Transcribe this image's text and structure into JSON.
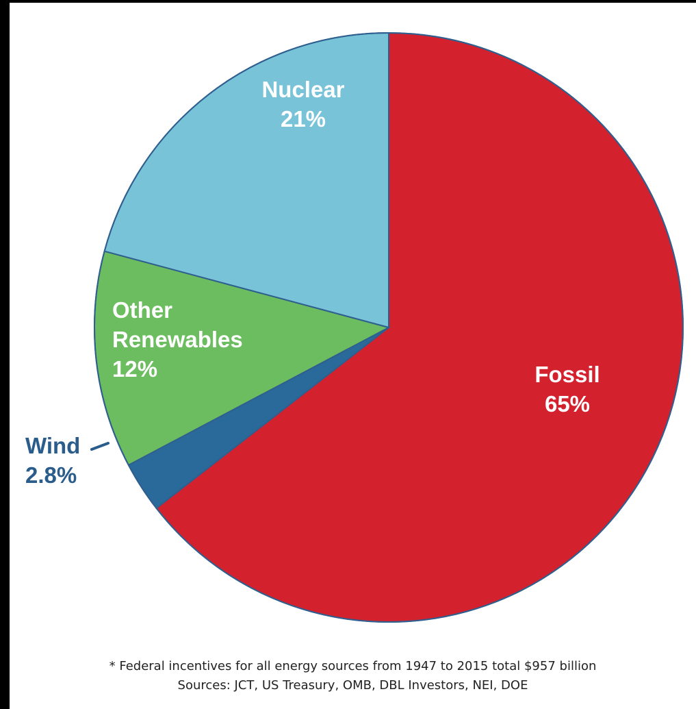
{
  "chart_data": {
    "type": "pie",
    "slices": [
      {
        "key": "fossil",
        "label_lines": [
          "Fossil"
        ],
        "value_text": "65%",
        "value": 65,
        "color": "#d3212e"
      },
      {
        "key": "wind",
        "label_lines": [
          "Wind"
        ],
        "value_text": "2.8%",
        "value": 2.8,
        "color": "#2a6a9a"
      },
      {
        "key": "other",
        "label_lines": [
          "Other",
          "Renewables"
        ],
        "value_text": "12%",
        "value": 12,
        "color": "#6cbd5f"
      },
      {
        "key": "nuclear",
        "label_lines": [
          "Nuclear"
        ],
        "value_text": "21%",
        "value": 21,
        "color": "#78c3d8"
      }
    ],
    "edge_color": "#2f5f8e",
    "label_colors": {
      "inside": "#ffffff",
      "outside": "#2a5d8c"
    }
  },
  "footnote": {
    "line1": "* Federal incentives for all energy sources from 1947 to 2015 total $957 billion",
    "line2": "Sources: JCT, US Treasury, OMB, DBL Investors, NEI, DOE"
  }
}
